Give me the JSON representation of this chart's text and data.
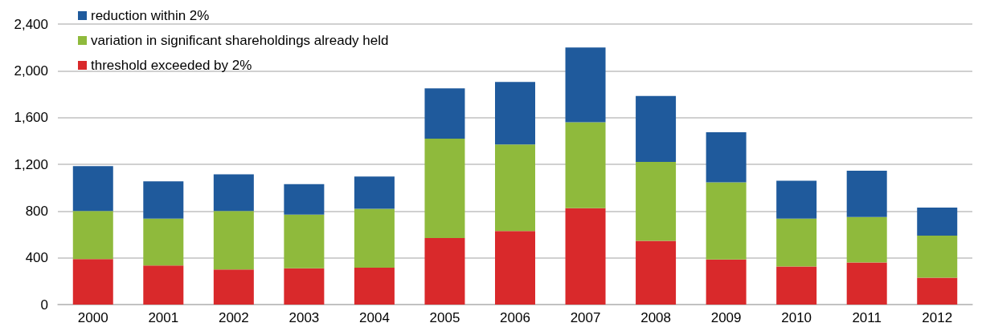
{
  "chart_data": {
    "type": "bar",
    "stacked": true,
    "categories": [
      "2000",
      "2001",
      "2002",
      "2003",
      "2004",
      "2005",
      "2006",
      "2007",
      "2008",
      "2009",
      "2010",
      "2011",
      "2012"
    ],
    "series": [
      {
        "name": "threshold exceeded by 2%",
        "color": "#d9292b",
        "values": [
          390,
          335,
          300,
          310,
          315,
          570,
          630,
          825,
          545,
          385,
          325,
          360,
          230
        ]
      },
      {
        "name": "variation in significant shareholdings already held",
        "color": "#8fba3c",
        "values": [
          410,
          400,
          500,
          460,
          505,
          850,
          740,
          735,
          675,
          660,
          410,
          390,
          360
        ]
      },
      {
        "name": "reduction within 2%",
        "color": "#1f5a9c",
        "values": [
          385,
          320,
          315,
          260,
          275,
          430,
          535,
          640,
          565,
          430,
          325,
          395,
          240
        ]
      }
    ],
    "ylim": [
      0,
      2400
    ],
    "yticks": [
      0,
      {
        "value": 400,
        "label": "400"
      },
      {
        "value": 800,
        "label": "800"
      },
      {
        "value": 1200,
        "label": "1,200"
      },
      {
        "value": 1600,
        "label": "1,600"
      },
      {
        "value": 2000,
        "label": "2,000"
      },
      {
        "value": 2400,
        "label": "2,400"
      }
    ],
    "grid": "y",
    "legend": "top left"
  }
}
